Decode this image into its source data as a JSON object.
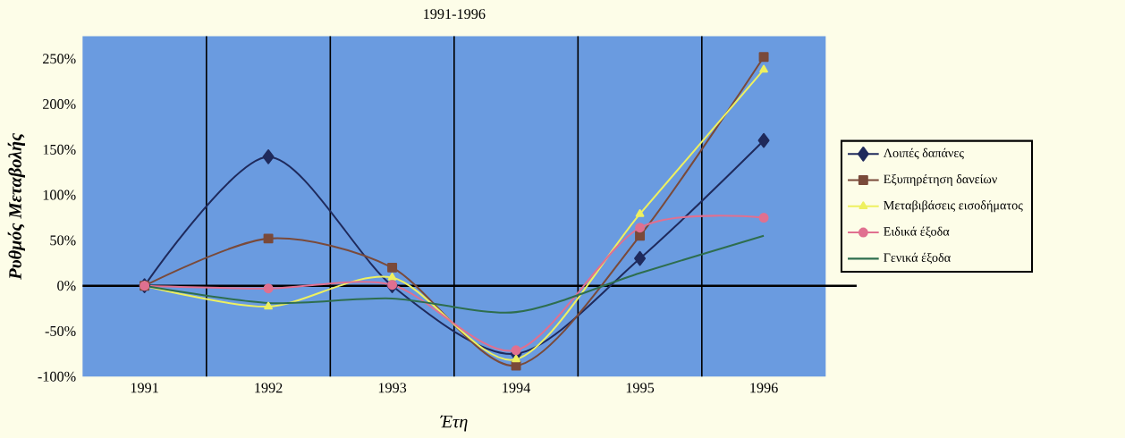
{
  "chart_data": {
    "type": "line",
    "title": "1991-1996",
    "xlabel": "Έτη",
    "ylabel": "Ρυθμός Μεταβολής",
    "categories": [
      "1991",
      "1992",
      "1993",
      "1994",
      "1995",
      "1996"
    ],
    "ylim": [
      -100,
      275
    ],
    "yticks": [
      {
        "value": -100,
        "label": "-100%"
      },
      {
        "value": -50,
        "label": "-50%"
      },
      {
        "value": 0,
        "label": "0%"
      },
      {
        "value": 50,
        "label": "50%"
      },
      {
        "value": 100,
        "label": "100%"
      },
      {
        "value": 150,
        "label": "150%"
      },
      {
        "value": 200,
        "label": "200%"
      },
      {
        "value": 250,
        "label": "250%"
      }
    ],
    "grid": "x",
    "legend": "right",
    "series": [
      {
        "name": "Λοιπές δαπάνες",
        "color": "#1f2a5c",
        "marker": "diamond",
        "values": [
          0,
          142,
          0,
          -75,
          30,
          160
        ]
      },
      {
        "name": "Εξυπηρέτηση δανείων",
        "color": "#7a4a3a",
        "marker": "square",
        "values": [
          0,
          52,
          20,
          -88,
          55,
          252
        ]
      },
      {
        "name": "Μεταβιβάσεις εισοδήματος",
        "color": "#eef060",
        "marker": "triangle",
        "values": [
          0,
          -23,
          9,
          -81,
          79,
          238
        ]
      },
      {
        "name": "Ειδικά έξοδα",
        "color": "#e07090",
        "marker": "circle",
        "values": [
          0,
          -3,
          1,
          -71,
          64,
          75
        ]
      },
      {
        "name": "Γενικά έξοδα",
        "color": "#2e6e4e",
        "marker": "none",
        "values": [
          0,
          -19,
          -14,
          -29,
          14,
          55
        ]
      }
    ]
  }
}
